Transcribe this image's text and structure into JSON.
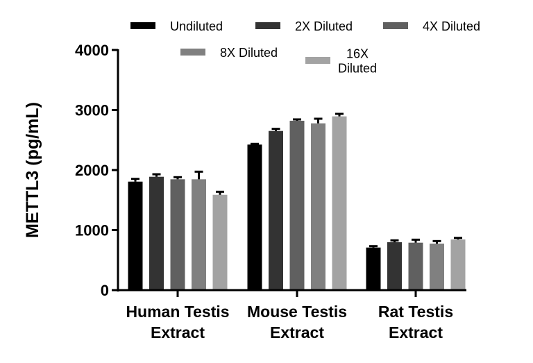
{
  "chart_data": {
    "type": "bar",
    "title": "",
    "xlabel": "",
    "ylabel": "METTL3 (pg/mL)",
    "ylim": [
      0,
      4000
    ],
    "yticks": [
      "0",
      "1000",
      "2000",
      "3000",
      "4000"
    ],
    "grid": false,
    "legend_position": "top",
    "categories": [
      [
        "Human Testis",
        "Extract"
      ],
      [
        "Mouse Testis",
        "Extract"
      ],
      [
        "Rat Testis",
        "Extract"
      ]
    ],
    "series": [
      {
        "name": "Undiluted",
        "color": "#000000",
        "values": [
          1807,
          2424,
          709
        ],
        "errors": [
          46,
          12,
          23
        ]
      },
      {
        "name": "2X Diluted",
        "color": "#333333",
        "values": [
          1888,
          2651,
          798
        ],
        "errors": [
          42,
          35,
          31
        ]
      },
      {
        "name": "4X Diluted",
        "color": "#606060",
        "values": [
          1846,
          2821,
          790
        ],
        "errors": [
          35,
          23,
          50
        ]
      },
      {
        "name": "8X Diluted",
        "color": "#808080",
        "values": [
          1846,
          2778,
          775
        ],
        "errors": [
          127,
          77,
          42
        ]
      },
      {
        "name": "16X Diluted",
        "color": "#a3a3a3",
        "values": [
          1587,
          2894,
          844
        ],
        "errors": [
          51,
          42,
          26
        ]
      }
    ],
    "legend_labels": [
      [
        "Undiluted"
      ],
      [
        "2X Diluted"
      ],
      [
        "4X Diluted"
      ],
      [
        "8X Diluted"
      ],
      [
        "16X",
        "Diluted"
      ]
    ]
  }
}
